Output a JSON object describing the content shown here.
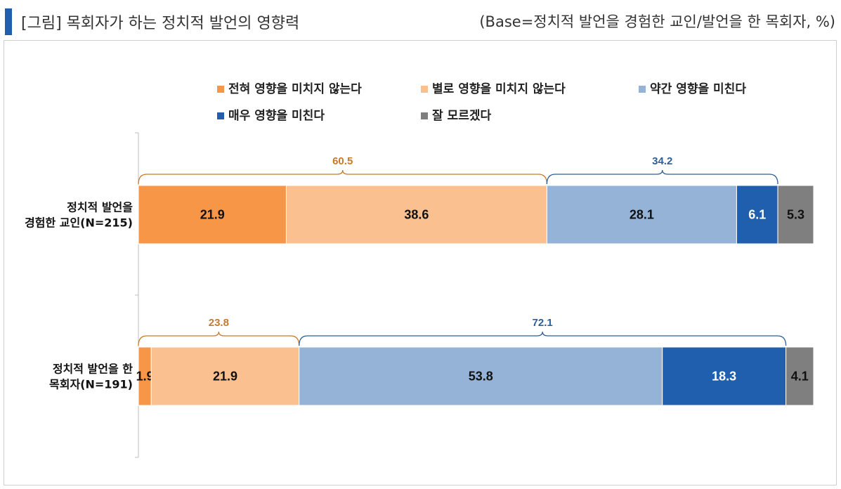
{
  "header": {
    "title": "[그림] 목회자가 하는 정치적 발언의 영향력",
    "base_note": "(Base=정치적 발언을 경험한 교인/발언을 한 목회자, %)"
  },
  "chart_data": {
    "type": "bar",
    "orientation": "horizontal",
    "stacked": true,
    "xlim": [
      0,
      100
    ],
    "legend_position": "top",
    "categories": [
      [
        "정치적 발언을",
        "경험한 교인(N=215)"
      ],
      [
        "정치적 발언을 한",
        "목회자(N=191)"
      ]
    ],
    "series": [
      {
        "name": "전혀 영향을 미치지 않는다",
        "color": "#f79646",
        "label_color": "#111111",
        "values": [
          21.9,
          1.9
        ]
      },
      {
        "name": "별로 영향을 미치지 않는다",
        "color": "#fac090",
        "label_color": "#111111",
        "values": [
          38.6,
          21.9
        ]
      },
      {
        "name": "약간 영향을 미친다",
        "color": "#95b3d7",
        "label_color": "#111111",
        "values": [
          28.1,
          53.8
        ]
      },
      {
        "name": "매우 영향을 미친다",
        "color": "#1f5fad",
        "label_color": "#ffffff",
        "values": [
          6.1,
          18.3
        ]
      },
      {
        "name": "잘 모르겠다",
        "color": "#7f7f7f",
        "label_color": "#111111",
        "values": [
          5.3,
          4.1
        ]
      }
    ],
    "group_totals": [
      [
        {
          "label": "60.5",
          "value": 60.5,
          "series": [
            0,
            1
          ],
          "color": "#c77a2a"
        },
        {
          "label": "34.2",
          "value": 34.2,
          "series": [
            2,
            3
          ],
          "color": "#2e5f95"
        }
      ],
      [
        {
          "label": "23.8",
          "value": 23.8,
          "series": [
            0,
            1
          ],
          "color": "#c77a2a"
        },
        {
          "label": "72.1",
          "value": 72.1,
          "series": [
            2,
            3
          ],
          "color": "#2e5f95"
        }
      ]
    ]
  }
}
